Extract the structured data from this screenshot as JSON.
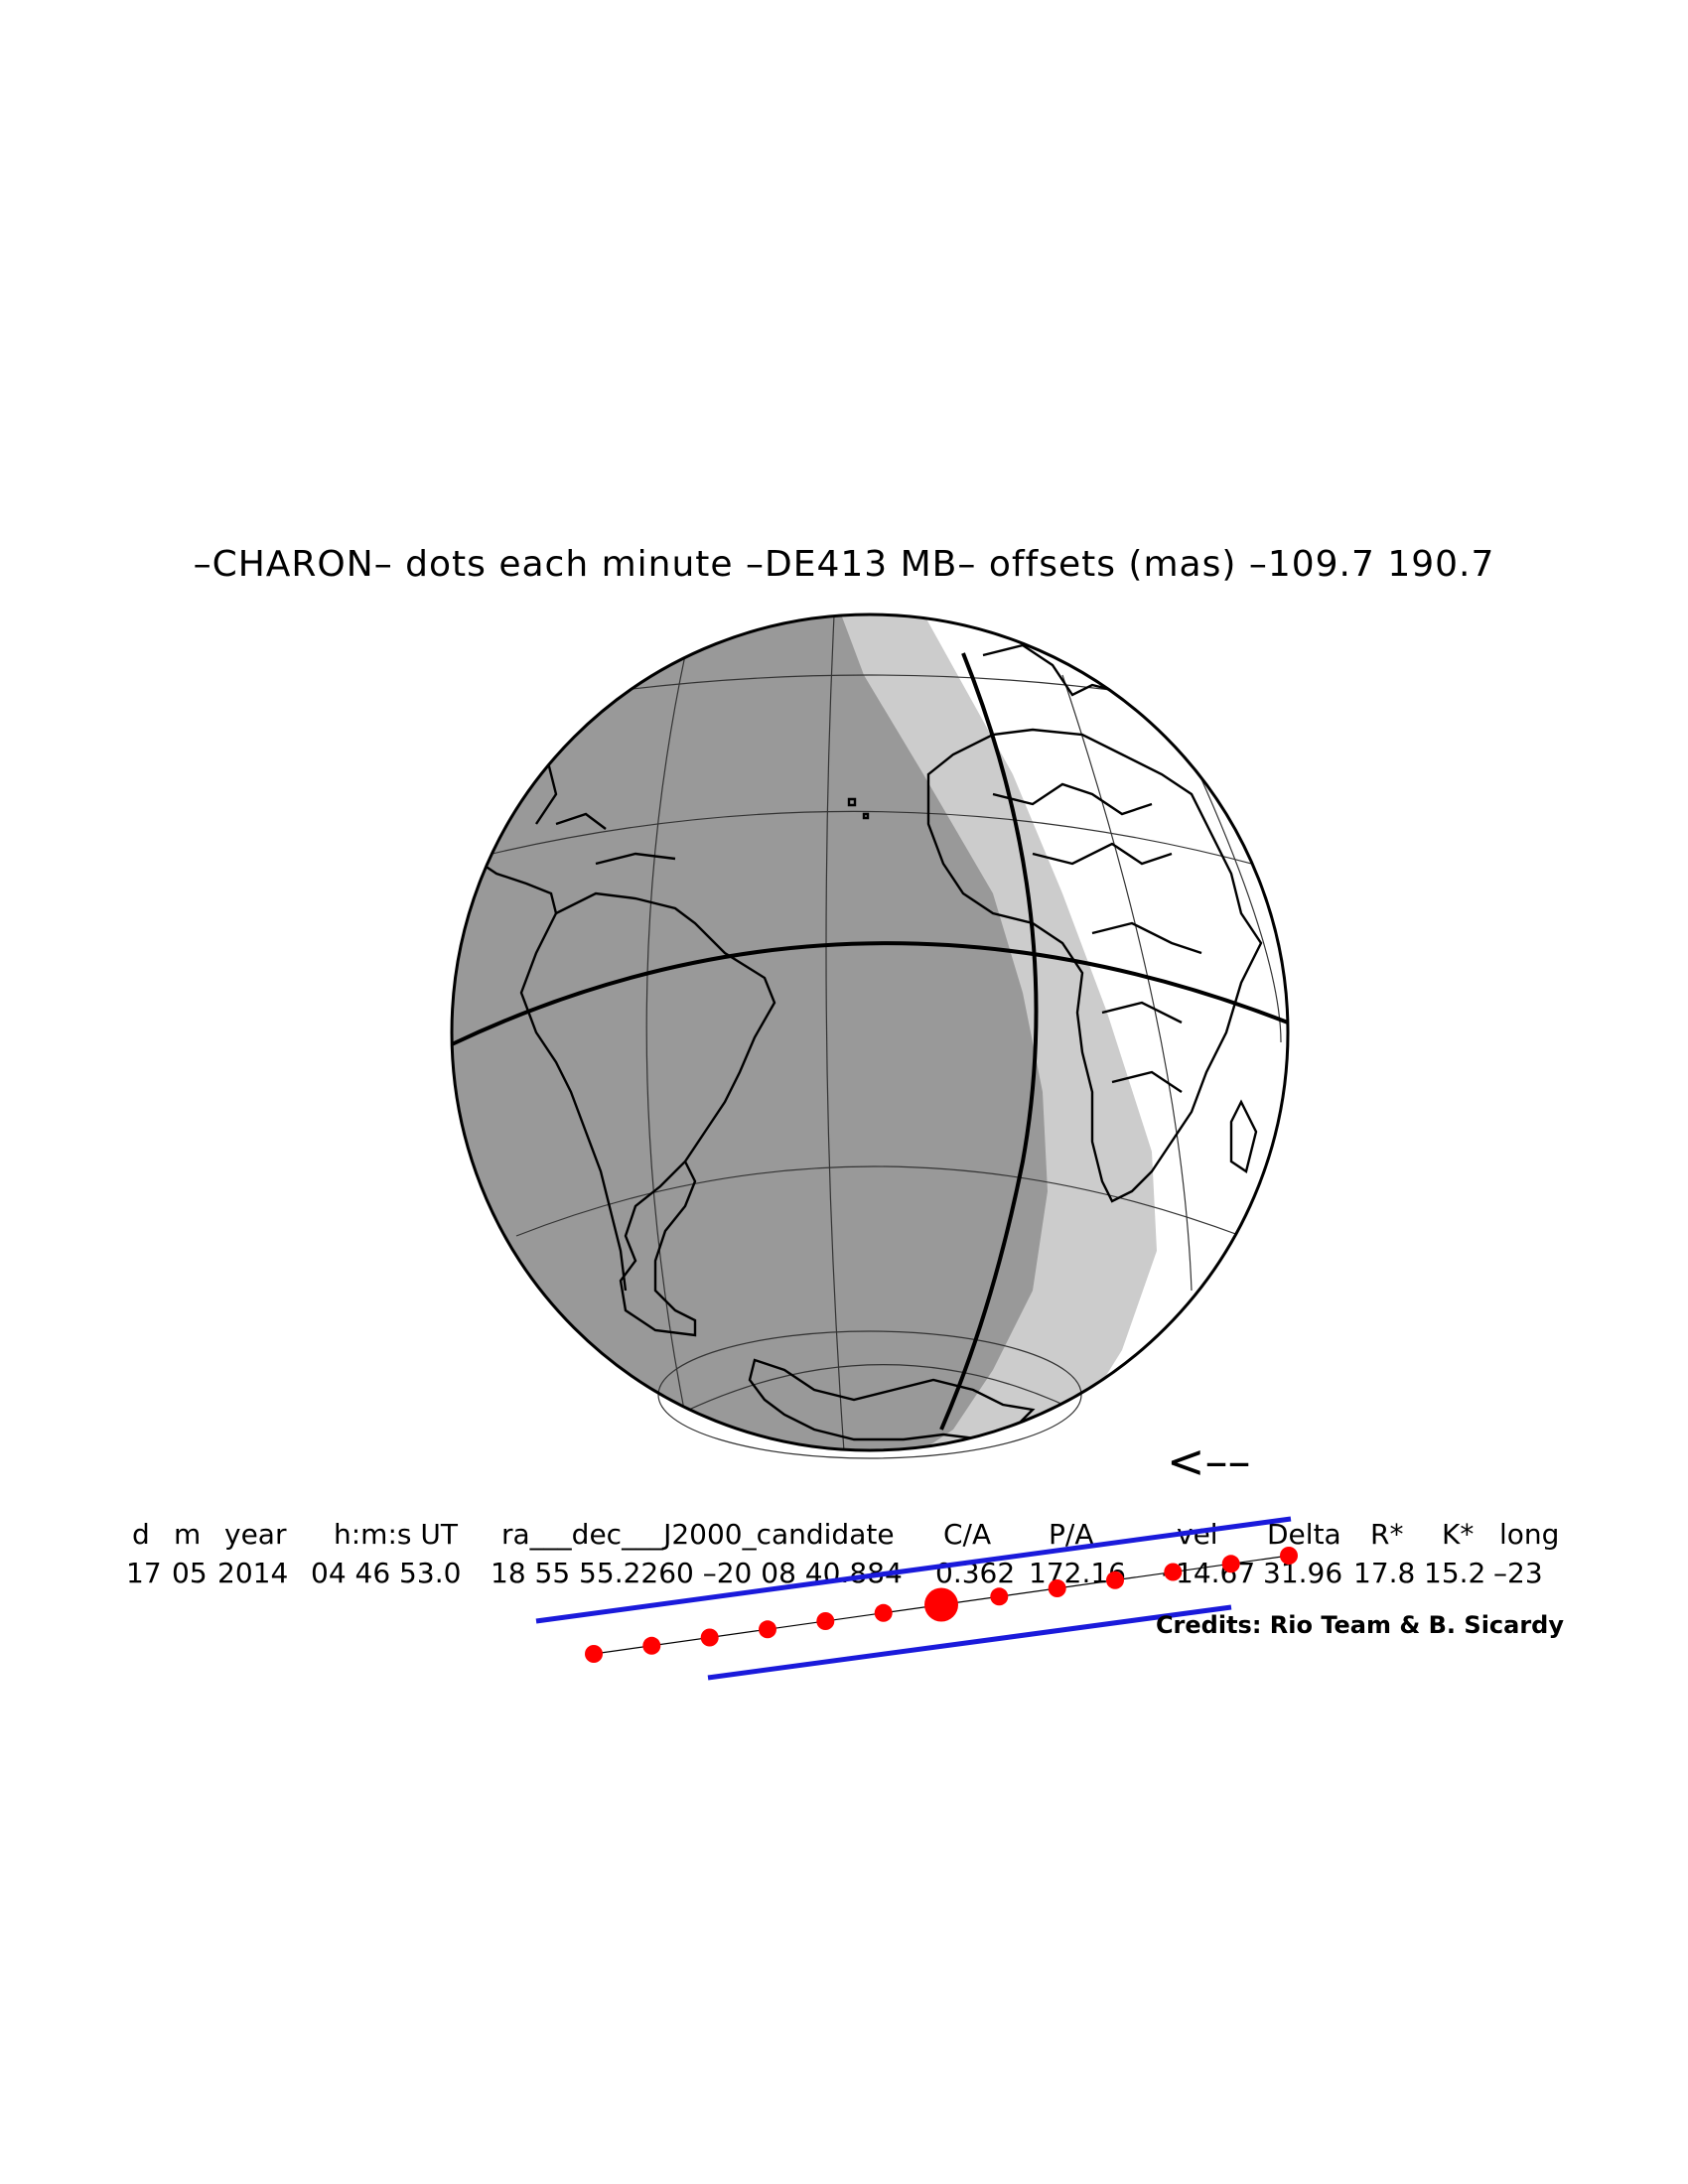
{
  "title": "–CHARON– dots each minute –DE413 MB– offsets (mas) –109.7   190.7",
  "direction_arrow": "<––",
  "table": {
    "headers": [
      "d",
      "m",
      "year",
      "h:m:s UT",
      "ra___dec___J2000_candidate",
      "C/A",
      "P/A",
      "vel",
      "Delta",
      "R*",
      "K*",
      "long"
    ],
    "values": [
      "17",
      "05",
      "2014",
      "04 46 53.0",
      "18 55 55.2260 –20 08 40.884",
      "0.362",
      "172.16",
      "–14.67",
      "31.96",
      "17.8",
      "15.2",
      "–23"
    ]
  },
  "credits": "Credits: Rio Team & B. Sicardy",
  "colors": {
    "night": "#999999",
    "twilight": "#cccccc",
    "day": "#ffffff",
    "track_limits": "#1a1adb",
    "dots": "#ff0000"
  },
  "track": {
    "dots_count": 13,
    "closest_approach_index": 6
  }
}
